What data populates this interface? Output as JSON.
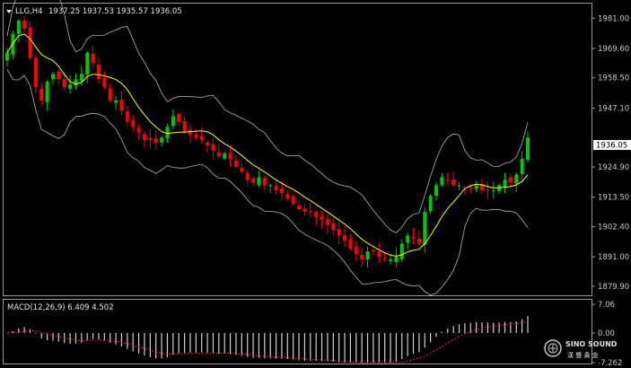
{
  "header": {
    "symbol_timeframe": "LLG,H4",
    "ohlc": "1937.25 1937.53 1935.57 1936.05"
  },
  "macd": {
    "label": "MACD(12,26,9) 6.409 4.502",
    "axis_ticks": [
      "7.06",
      "0.00",
      "-7.262"
    ]
  },
  "price_axis": {
    "ticks": [
      "1981.00",
      "1969.60",
      "1958.50",
      "1947.10",
      "1924.90",
      "1913.50",
      "1902.40",
      "1891.00",
      "1879.90"
    ],
    "current_price": "1936.05"
  },
  "watermark": {
    "brand": "SINO SOUND",
    "chinese": "漢 聲 貴 金"
  },
  "colors": {
    "background": "#000000",
    "grid": "#9a9a9a",
    "bull": "#00c800",
    "bear": "#ff0000",
    "bands": "#b4b4b4",
    "moving_average": "#ffff00",
    "signal": "#ff2a2a"
  },
  "chart_data": {
    "type": "candlestick",
    "ylim": [
      1876.5,
      1986.5
    ],
    "series": [
      {
        "name": "price",
        "close_path": [
          1968,
          1975,
          1980,
          1977,
          1966,
          1955,
          1950,
          1957,
          1960,
          1958,
          1955,
          1956,
          1958,
          1960,
          1968,
          1964,
          1958,
          1955,
          1950,
          1950,
          1946,
          1942,
          1940,
          1938,
          1935,
          1935,
          1934,
          1936,
          1940,
          1944,
          1942,
          1938,
          1937,
          1936,
          1935,
          1933,
          1931,
          1929,
          1930,
          1928,
          1925,
          1923,
          1920,
          1919,
          1921,
          1918,
          1918,
          1916,
          1915,
          1913,
          1911,
          1909,
          1908,
          1908,
          1906,
          1905,
          1903,
          1901,
          1899,
          1897,
          1894,
          1892,
          1890,
          1893,
          1893,
          1891,
          1890,
          1890,
          1891,
          1896,
          1899,
          1898,
          1896,
          1908,
          1914,
          1918,
          1921,
          1920,
          1918,
          1918,
          1917,
          1917,
          1918,
          1916,
          1916,
          1916,
          1918,
          1920,
          1919,
          1922,
          1928,
          1936
        ]
      }
    ]
  }
}
